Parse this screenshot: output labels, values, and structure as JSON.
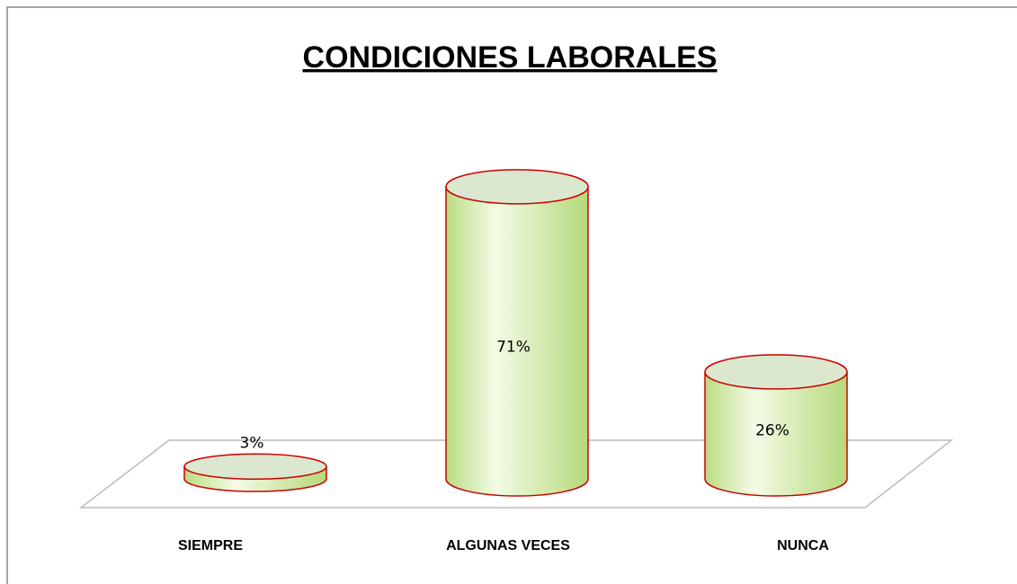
{
  "chart_data": {
    "type": "bar3d",
    "title": "CONDICIONES LABORALES",
    "categories": [
      "SIEMPRE",
      "ALGUNAS VECES",
      "NUNCA"
    ],
    "values": [
      3,
      71,
      26
    ],
    "value_labels": [
      "3%",
      "71%",
      "26%"
    ],
    "color": "#cfe9a4",
    "edge_color": "#cc0000"
  }
}
